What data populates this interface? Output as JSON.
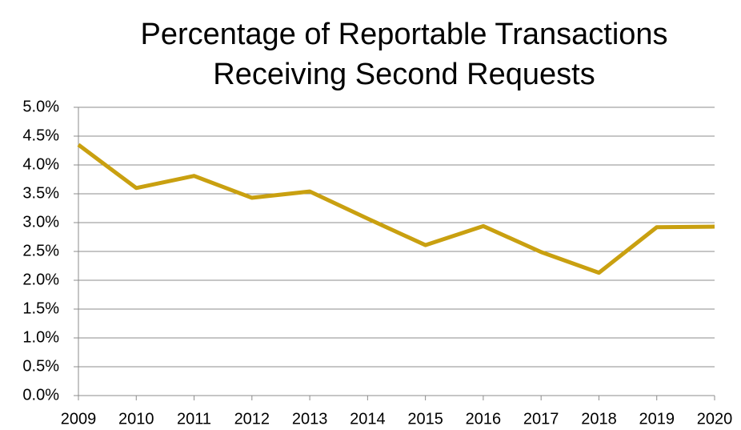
{
  "chart_data": {
    "type": "line",
    "title": [
      "Percentage of Reportable Transactions",
      "Receiving Second Requests"
    ],
    "x": [
      2009,
      2010,
      2011,
      2012,
      2013,
      2014,
      2015,
      2016,
      2017,
      2018,
      2019,
      2020
    ],
    "xlim": [
      2009,
      2020
    ],
    "xticks": [
      2009,
      2010,
      2011,
      2012,
      2013,
      2014,
      2015,
      2016,
      2017,
      2018,
      2019,
      2020
    ],
    "series": [
      {
        "name": null,
        "color": "#c9a010",
        "values": [
          4.35,
          3.6,
          3.81,
          3.43,
          3.54,
          3.07,
          2.61,
          2.94,
          2.49,
          2.13,
          2.92,
          2.93
        ]
      }
    ],
    "ylim": [
      0,
      5
    ],
    "yticks": [
      {
        "value": 0,
        "label": "0.0%"
      },
      {
        "value": 0.5,
        "label": "0.5%"
      },
      {
        "value": 1,
        "label": "1.0%"
      },
      {
        "value": 1.5,
        "label": "1.5%"
      },
      {
        "value": 2,
        "label": "2.0%"
      },
      {
        "value": 2.5,
        "label": "2.5%"
      },
      {
        "value": 3,
        "label": "3.0%"
      },
      {
        "value": 3.5,
        "label": "3.5%"
      },
      {
        "value": 4,
        "label": "4.0%"
      },
      {
        "value": 4.5,
        "label": "4.5%"
      },
      {
        "value": 5,
        "label": "5.0%"
      }
    ],
    "grid": true
  }
}
